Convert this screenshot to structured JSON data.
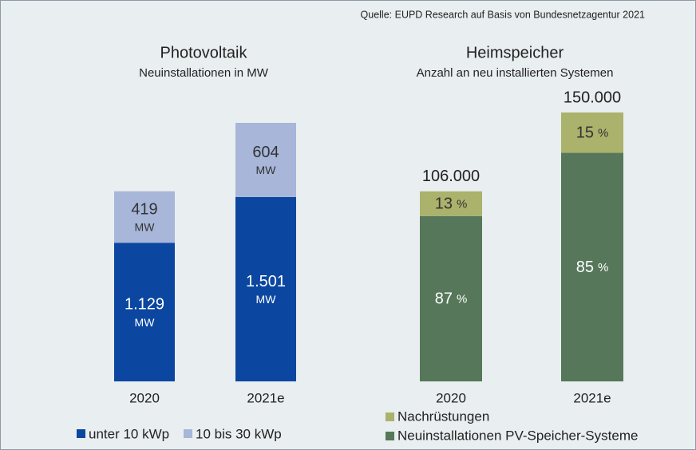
{
  "source": "Quelle: EUPD Research auf Basis von Bundesnetzagentur 2021",
  "chart_data": [
    {
      "type": "stacked-bar",
      "title": "Photovoltaik",
      "subtitle": "Neuinstallationen in MW",
      "categories": [
        "2020",
        "2021e"
      ],
      "unit": "MW",
      "legend": "bottom",
      "series": [
        {
          "name": "unter 10 kWp",
          "color": "#0b47a1",
          "label_color": "#ffffff",
          "values": [
            1129,
            1501
          ],
          "value_labels": [
            "1.129",
            "1.501"
          ]
        },
        {
          "name": "10 bis 30 kWp",
          "color": "#a7b6d9",
          "label_color": "#333333",
          "values": [
            419,
            604
          ]
        }
      ]
    },
    {
      "type": "share-bar",
      "title": "Heimspeicher",
      "subtitle": "Anzahl an neu installierten Systemen",
      "categories": [
        "2020",
        "2021e"
      ],
      "unit": "%",
      "legend": "bottom",
      "totals": [
        106000,
        150000
      ],
      "total_labels": [
        "106.000",
        "150.000"
      ],
      "series": [
        {
          "name": "Neuinstallationen PV-Speicher-Systeme",
          "color": "#56775a",
          "label_color": "#ffffff",
          "values": [
            87,
            85
          ]
        },
        {
          "name": "Nachrüstungen",
          "color": "#aab26b",
          "label_color": "#333333",
          "values": [
            13,
            15
          ]
        }
      ]
    }
  ]
}
